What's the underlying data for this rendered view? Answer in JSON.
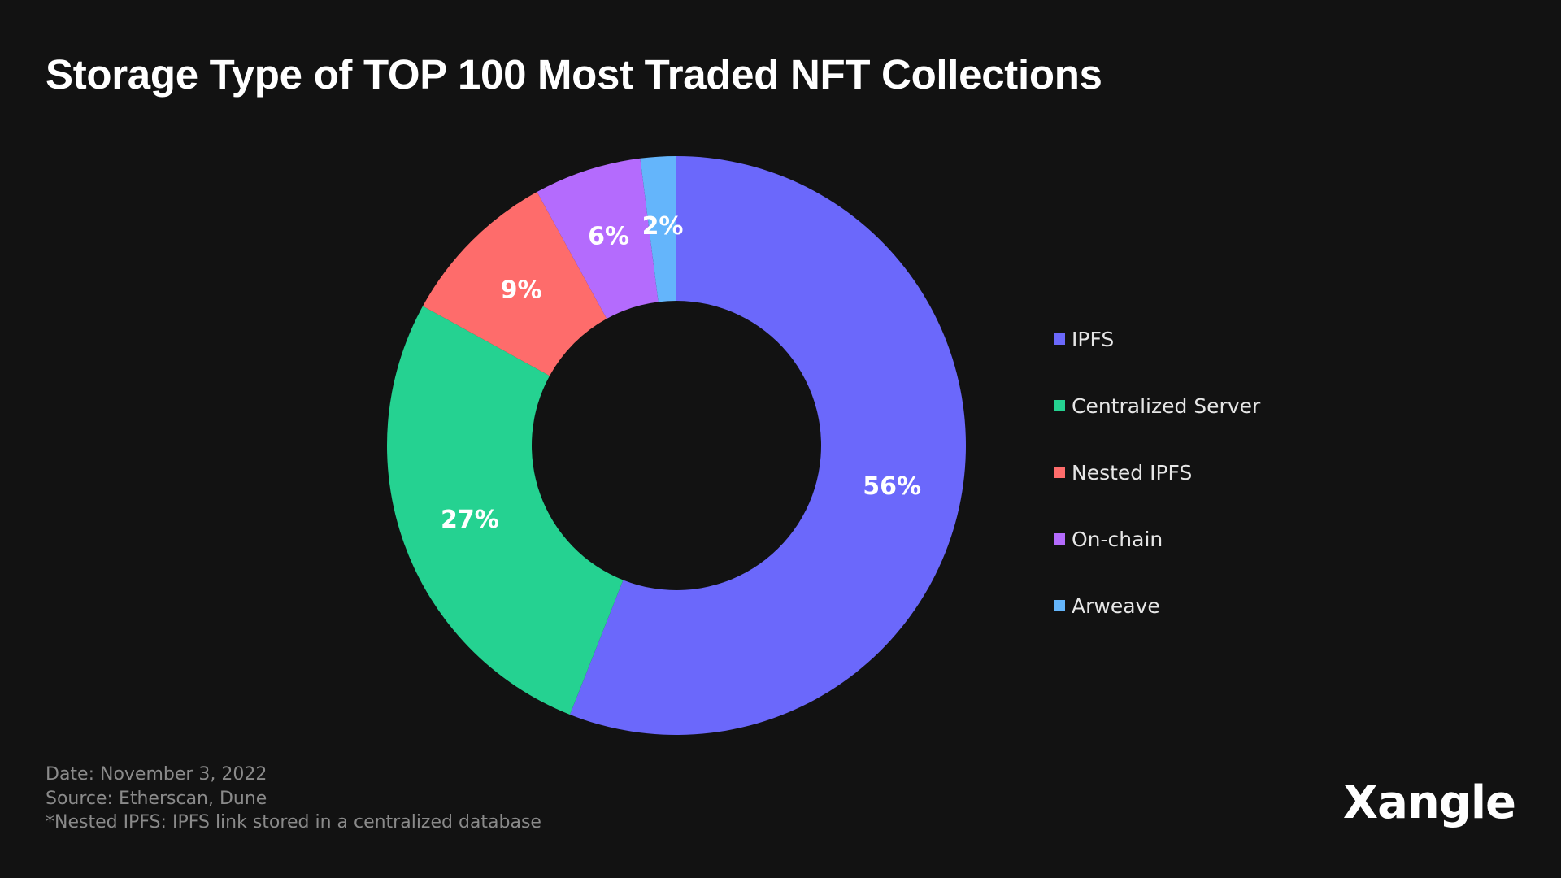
{
  "title": "Storage Type of TOP 100 Most Traded NFT Collections",
  "chart_data": {
    "type": "pie",
    "donut": true,
    "title": "Storage Type of TOP 100 Most Traded NFT Collections",
    "categories": [
      "IPFS",
      "Centralized Server",
      "Nested IPFS",
      "On-chain",
      "Arweave"
    ],
    "values": [
      56,
      27,
      9,
      6,
      2
    ],
    "value_labels": [
      "56%",
      "27%",
      "9%",
      "6%",
      "2%"
    ],
    "colors": [
      "#6b68fb",
      "#25d291",
      "#fe6c6b",
      "#b46bfd",
      "#64b5fb"
    ],
    "start_angle_deg": 0,
    "direction": "clockwise",
    "legend_position": "right"
  },
  "legend": [
    {
      "label": "IPFS",
      "color": "#6b68fb"
    },
    {
      "label": "Centralized Server",
      "color": "#25d291"
    },
    {
      "label": "Nested IPFS",
      "color": "#fe6c6b"
    },
    {
      "label": "On-chain",
      "color": "#b46bfd"
    },
    {
      "label": "Arweave",
      "color": "#64b5fb"
    }
  ],
  "footnotes": {
    "date": "Date: November 3, 2022",
    "source": "Source: Etherscan, Dune",
    "note": "*Nested IPFS: IPFS link stored in a centralized database"
  },
  "brand": "Xangle",
  "colors": {
    "background": "#121212",
    "title": "#ffffff",
    "footnote": "#8a8a8a"
  }
}
